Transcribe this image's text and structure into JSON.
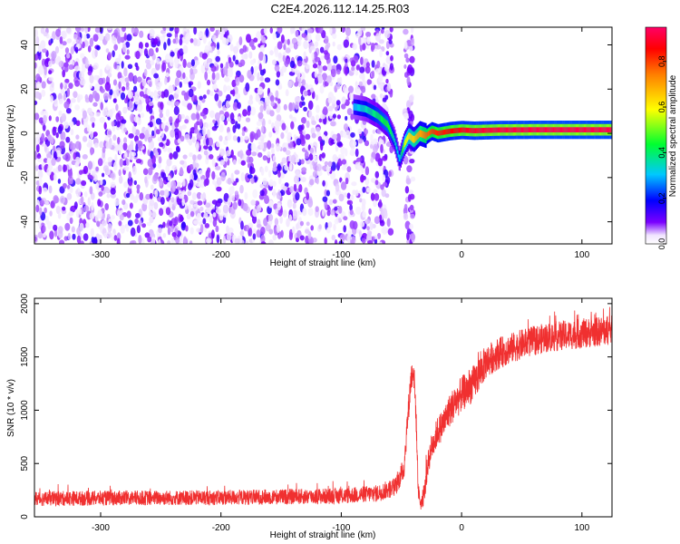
{
  "figure": {
    "title": "C2E4.2026.112.14.25.R03"
  },
  "chart_data": [
    {
      "type": "heatmap",
      "xlabel": "Height of straight line (km)",
      "ylabel": "Frequency (Hz)",
      "xlim": [
        -355,
        125
      ],
      "ylim": [
        -50,
        48
      ],
      "xticks": [
        -300,
        -200,
        -100,
        0,
        100
      ],
      "xtick_labels": [
        "-300",
        "-200",
        "-100",
        "0",
        "100"
      ],
      "yticks": [
        -40,
        -20,
        0,
        20,
        40
      ],
      "ytick_labels": [
        "-40",
        "-20",
        "0",
        "20",
        "40"
      ],
      "colorbar": {
        "label": "Normalized spectral amplitude",
        "range": [
          0,
          0.95
        ],
        "ticks": [
          0,
          0.2,
          0.4,
          0.6,
          0.8
        ],
        "tick_labels": [
          "0.0",
          "0.2",
          "0.4",
          "0.6",
          "0.8"
        ]
      },
      "noise_region": {
        "x": [
          -355,
          -58
        ],
        "y": [
          -50,
          48
        ],
        "typical_amplitude": 0.1
      },
      "noise_band": {
        "x": [
          -47,
          -40
        ],
        "y": [
          -50,
          48
        ],
        "typical_amplitude": 0.05
      },
      "signal_track": {
        "x": [
          -90,
          -80,
          -70,
          -62,
          -56,
          -52,
          -48,
          -44,
          -40,
          -35,
          -30,
          -25,
          -20,
          -10,
          0,
          10,
          30,
          60,
          100,
          125
        ],
        "frequency": [
          12,
          11,
          8,
          4,
          -3,
          -12,
          -5,
          -1,
          -3,
          0,
          -1,
          1,
          0,
          1,
          1.5,
          1.2,
          1.5,
          1.6,
          1.6,
          1.6
        ],
        "amplitude": [
          0.3,
          0.35,
          0.4,
          0.45,
          0.35,
          0.3,
          0.55,
          0.6,
          0.65,
          0.7,
          0.75,
          0.8,
          0.82,
          0.85,
          0.88,
          0.9,
          0.92,
          0.93,
          0.93,
          0.93
        ]
      }
    },
    {
      "type": "line",
      "xlabel": "Height of straight line (km)",
      "ylabel": "SNR (10 * v/v)",
      "xlim": [
        -355,
        125
      ],
      "ylim": [
        0,
        2050
      ],
      "xticks": [
        -300,
        -200,
        -100,
        0,
        100
      ],
      "xtick_labels": [
        "-300",
        "-200",
        "-100",
        "0",
        "100"
      ],
      "yticks": [
        0,
        500,
        1000,
        1500,
        2000
      ],
      "ytick_labels": [
        "0",
        "500",
        "1000",
        "1500",
        "2000"
      ],
      "series": [
        {
          "name": "SNR",
          "color": "#f03030",
          "x": [
            -355,
            -300,
            -200,
            -100,
            -70,
            -55,
            -48,
            -45,
            -42,
            -40,
            -38,
            -36,
            -34,
            -32,
            -30,
            -28,
            -25,
            -20,
            -15,
            -10,
            0,
            10,
            20,
            30,
            50,
            70,
            100,
            125
          ],
          "y": [
            170,
            175,
            180,
            195,
            220,
            280,
            450,
            900,
            1300,
            1400,
            1000,
            250,
            120,
            160,
            300,
            500,
            650,
            800,
            880,
            1000,
            1150,
            1250,
            1450,
            1530,
            1620,
            1680,
            1720,
            1750
          ],
          "noise_amplitude": [
            70,
            70,
            70,
            75,
            80,
            90,
            110,
            130,
            140,
            140,
            130,
            80,
            60,
            70,
            100,
            120,
            130,
            140,
            150,
            160,
            170,
            170,
            160,
            150,
            140,
            140,
            140,
            140
          ]
        }
      ]
    }
  ]
}
